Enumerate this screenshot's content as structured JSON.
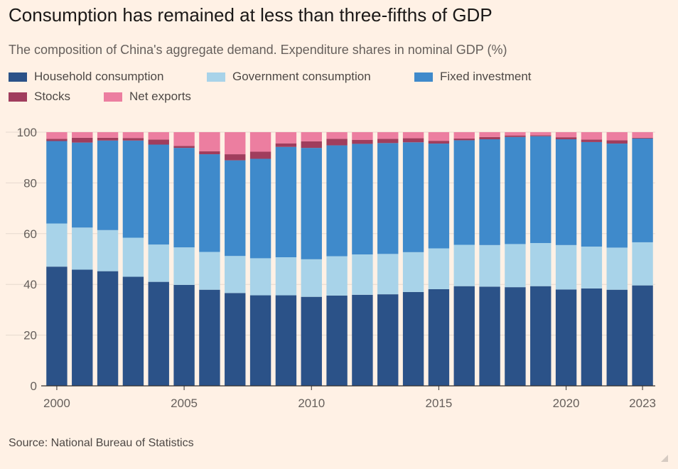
{
  "title": "Consumption has remained at less than three-fifths of GDP",
  "subtitle": "The composition of China's aggregate demand. Expenditure shares in nominal GDP (%)",
  "source": "Source: National Bureau of Statistics",
  "chart_data": {
    "type": "bar",
    "stacked": true,
    "categories": [
      "2000",
      "2001",
      "2002",
      "2003",
      "2004",
      "2005",
      "2006",
      "2007",
      "2008",
      "2009",
      "2010",
      "2011",
      "2012",
      "2013",
      "2014",
      "2015",
      "2016",
      "2017",
      "2018",
      "2019",
      "2020",
      "2021",
      "2022",
      "2023"
    ],
    "x_tick_labels": [
      "2000",
      "2005",
      "2010",
      "2015",
      "2020",
      "2023"
    ],
    "y_ticks": [
      0,
      20,
      40,
      60,
      80,
      100
    ],
    "ylim": [
      0,
      100
    ],
    "grid": true,
    "legend_position": "top-left",
    "series": [
      {
        "name": "Household consumption",
        "color": "#2B5288",
        "values": [
          47.0,
          45.8,
          45.2,
          43.0,
          41.0,
          39.8,
          37.9,
          36.6,
          35.7,
          35.7,
          35.1,
          35.6,
          35.9,
          36.1,
          37.0,
          38.1,
          39.3,
          39.1,
          38.9,
          39.3,
          38.0,
          38.4,
          37.9,
          39.6
        ]
      },
      {
        "name": "Government consumption",
        "color": "#A8D3E9",
        "values": [
          17.0,
          16.6,
          16.2,
          15.4,
          14.7,
          14.8,
          14.9,
          14.6,
          14.6,
          15.0,
          14.8,
          15.5,
          15.9,
          15.9,
          15.7,
          16.1,
          16.3,
          16.4,
          17.0,
          17.0,
          17.5,
          16.5,
          16.6,
          17.0
        ]
      },
      {
        "name": "Fixed investment",
        "color": "#3F8ACB",
        "values": [
          32.5,
          33.5,
          35.3,
          38.3,
          39.4,
          39.2,
          38.5,
          37.7,
          39.2,
          43.5,
          43.9,
          43.7,
          43.6,
          43.7,
          43.3,
          41.3,
          41.2,
          41.7,
          42.2,
          42.1,
          41.7,
          41.2,
          41.0,
          40.9
        ]
      },
      {
        "name": "Stocks",
        "color": "#A03D5D",
        "values": [
          0.9,
          1.9,
          1.1,
          1.0,
          2.0,
          0.8,
          1.2,
          2.4,
          2.8,
          1.4,
          2.6,
          2.6,
          1.6,
          1.7,
          1.6,
          1.1,
          0.7,
          0.9,
          0.6,
          0.4,
          0.8,
          1.0,
          1.3,
          0.3
        ]
      },
      {
        "name": "Net exports",
        "color": "#EC7EA0",
        "values": [
          2.6,
          2.2,
          2.2,
          2.3,
          2.9,
          5.4,
          7.5,
          8.7,
          7.7,
          4.4,
          3.6,
          2.6,
          3.0,
          2.6,
          2.4,
          3.4,
          2.5,
          1.9,
          1.3,
          1.2,
          2.0,
          2.9,
          3.2,
          2.2
        ]
      }
    ]
  }
}
